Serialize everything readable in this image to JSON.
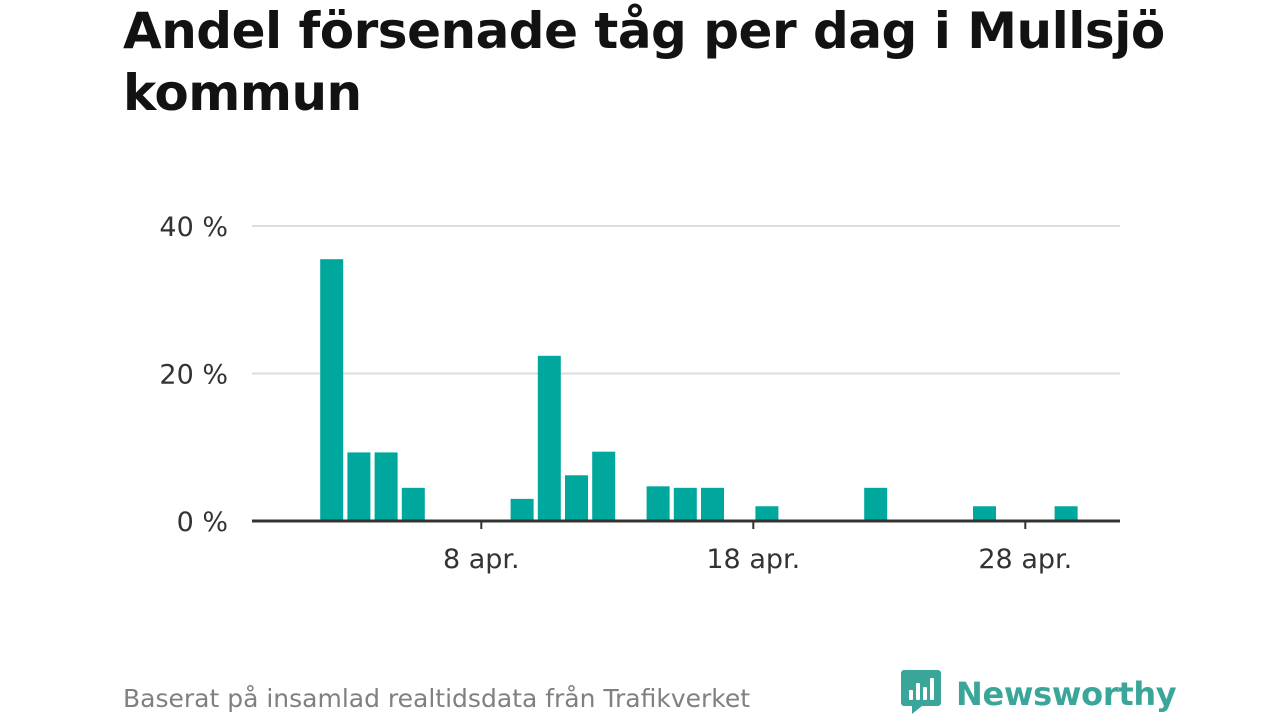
{
  "title": "Andel försenade tåg per dag i Mullsjö kommun",
  "footer": {
    "source_text": "Baserat på insamlad realtidsdata från Trafikverket",
    "brand_name": "Newsworthy"
  },
  "colors": {
    "bar": "#00a79d",
    "grid": "#dcdcdc",
    "axis": "#333333",
    "title": "#121212",
    "footer_text": "#808080",
    "brand": "#3aa69a"
  },
  "icons": {
    "brand_logo": "newsworthy-logo-icon"
  },
  "chart_data": {
    "type": "bar",
    "x_unit": "day of April",
    "x": [
      1,
      2,
      3,
      4,
      5,
      6,
      7,
      8,
      9,
      10,
      11,
      12,
      13,
      14,
      15,
      16,
      17,
      18,
      19,
      20,
      21,
      22,
      23,
      24,
      25,
      26,
      27,
      28,
      29,
      30
    ],
    "values": [
      0,
      35.5,
      9.3,
      9.3,
      4.5,
      0,
      0,
      0,
      3,
      22.4,
      6.2,
      9.4,
      0,
      4.7,
      4.5,
      4.5,
      0,
      2,
      0,
      0,
      0,
      4.5,
      0,
      0,
      0,
      2,
      0,
      0,
      2,
      0
    ],
    "x_ticks": [
      {
        "x": 8,
        "label": "8 apr."
      },
      {
        "x": 18,
        "label": "18 apr."
      },
      {
        "x": 28,
        "label": "28 apr."
      }
    ],
    "y_ticks": [
      {
        "value": 0,
        "label": "0 %"
      },
      {
        "value": 20,
        "label": "20 %"
      },
      {
        "value": 40,
        "label": "40 %"
      }
    ],
    "ylim": [
      0,
      40
    ],
    "grid": true
  }
}
